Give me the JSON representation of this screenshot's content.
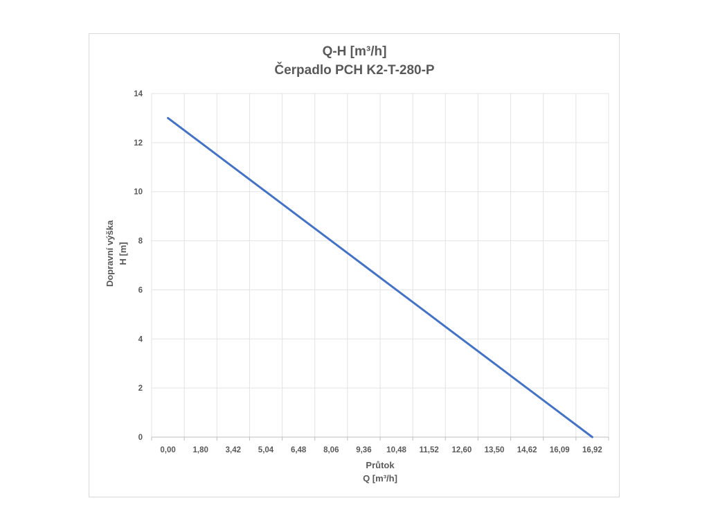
{
  "chart_data": {
    "type": "line",
    "title": "Q-H  [m³/h]",
    "subtitle": "Čerpadlo PCH K2-T-280-P",
    "xlabel_line1": "Průtok",
    "xlabel_line2": "Q [m³/h]",
    "ylabel_line1": "Dopravní výška",
    "ylabel_line2": "H [m]",
    "categories": [
      "0,00",
      "1,80",
      "3,42",
      "5,04",
      "6,48",
      "8,06",
      "9,36",
      "10,48",
      "11,52",
      "12,60",
      "13,50",
      "14,62",
      "16,09",
      "16,92"
    ],
    "y_ticks": [
      "0",
      "2",
      "4",
      "6",
      "8",
      "10",
      "12",
      "14"
    ],
    "ylim": [
      0,
      14
    ],
    "grid": true,
    "series": [
      {
        "values": [
          13,
          12,
          11,
          10,
          9,
          8,
          7,
          6,
          5,
          4,
          3,
          2,
          1,
          0
        ]
      }
    ],
    "colors": {
      "line": "#4472c4",
      "grid": "#e3e3e3",
      "text": "#595959"
    }
  }
}
